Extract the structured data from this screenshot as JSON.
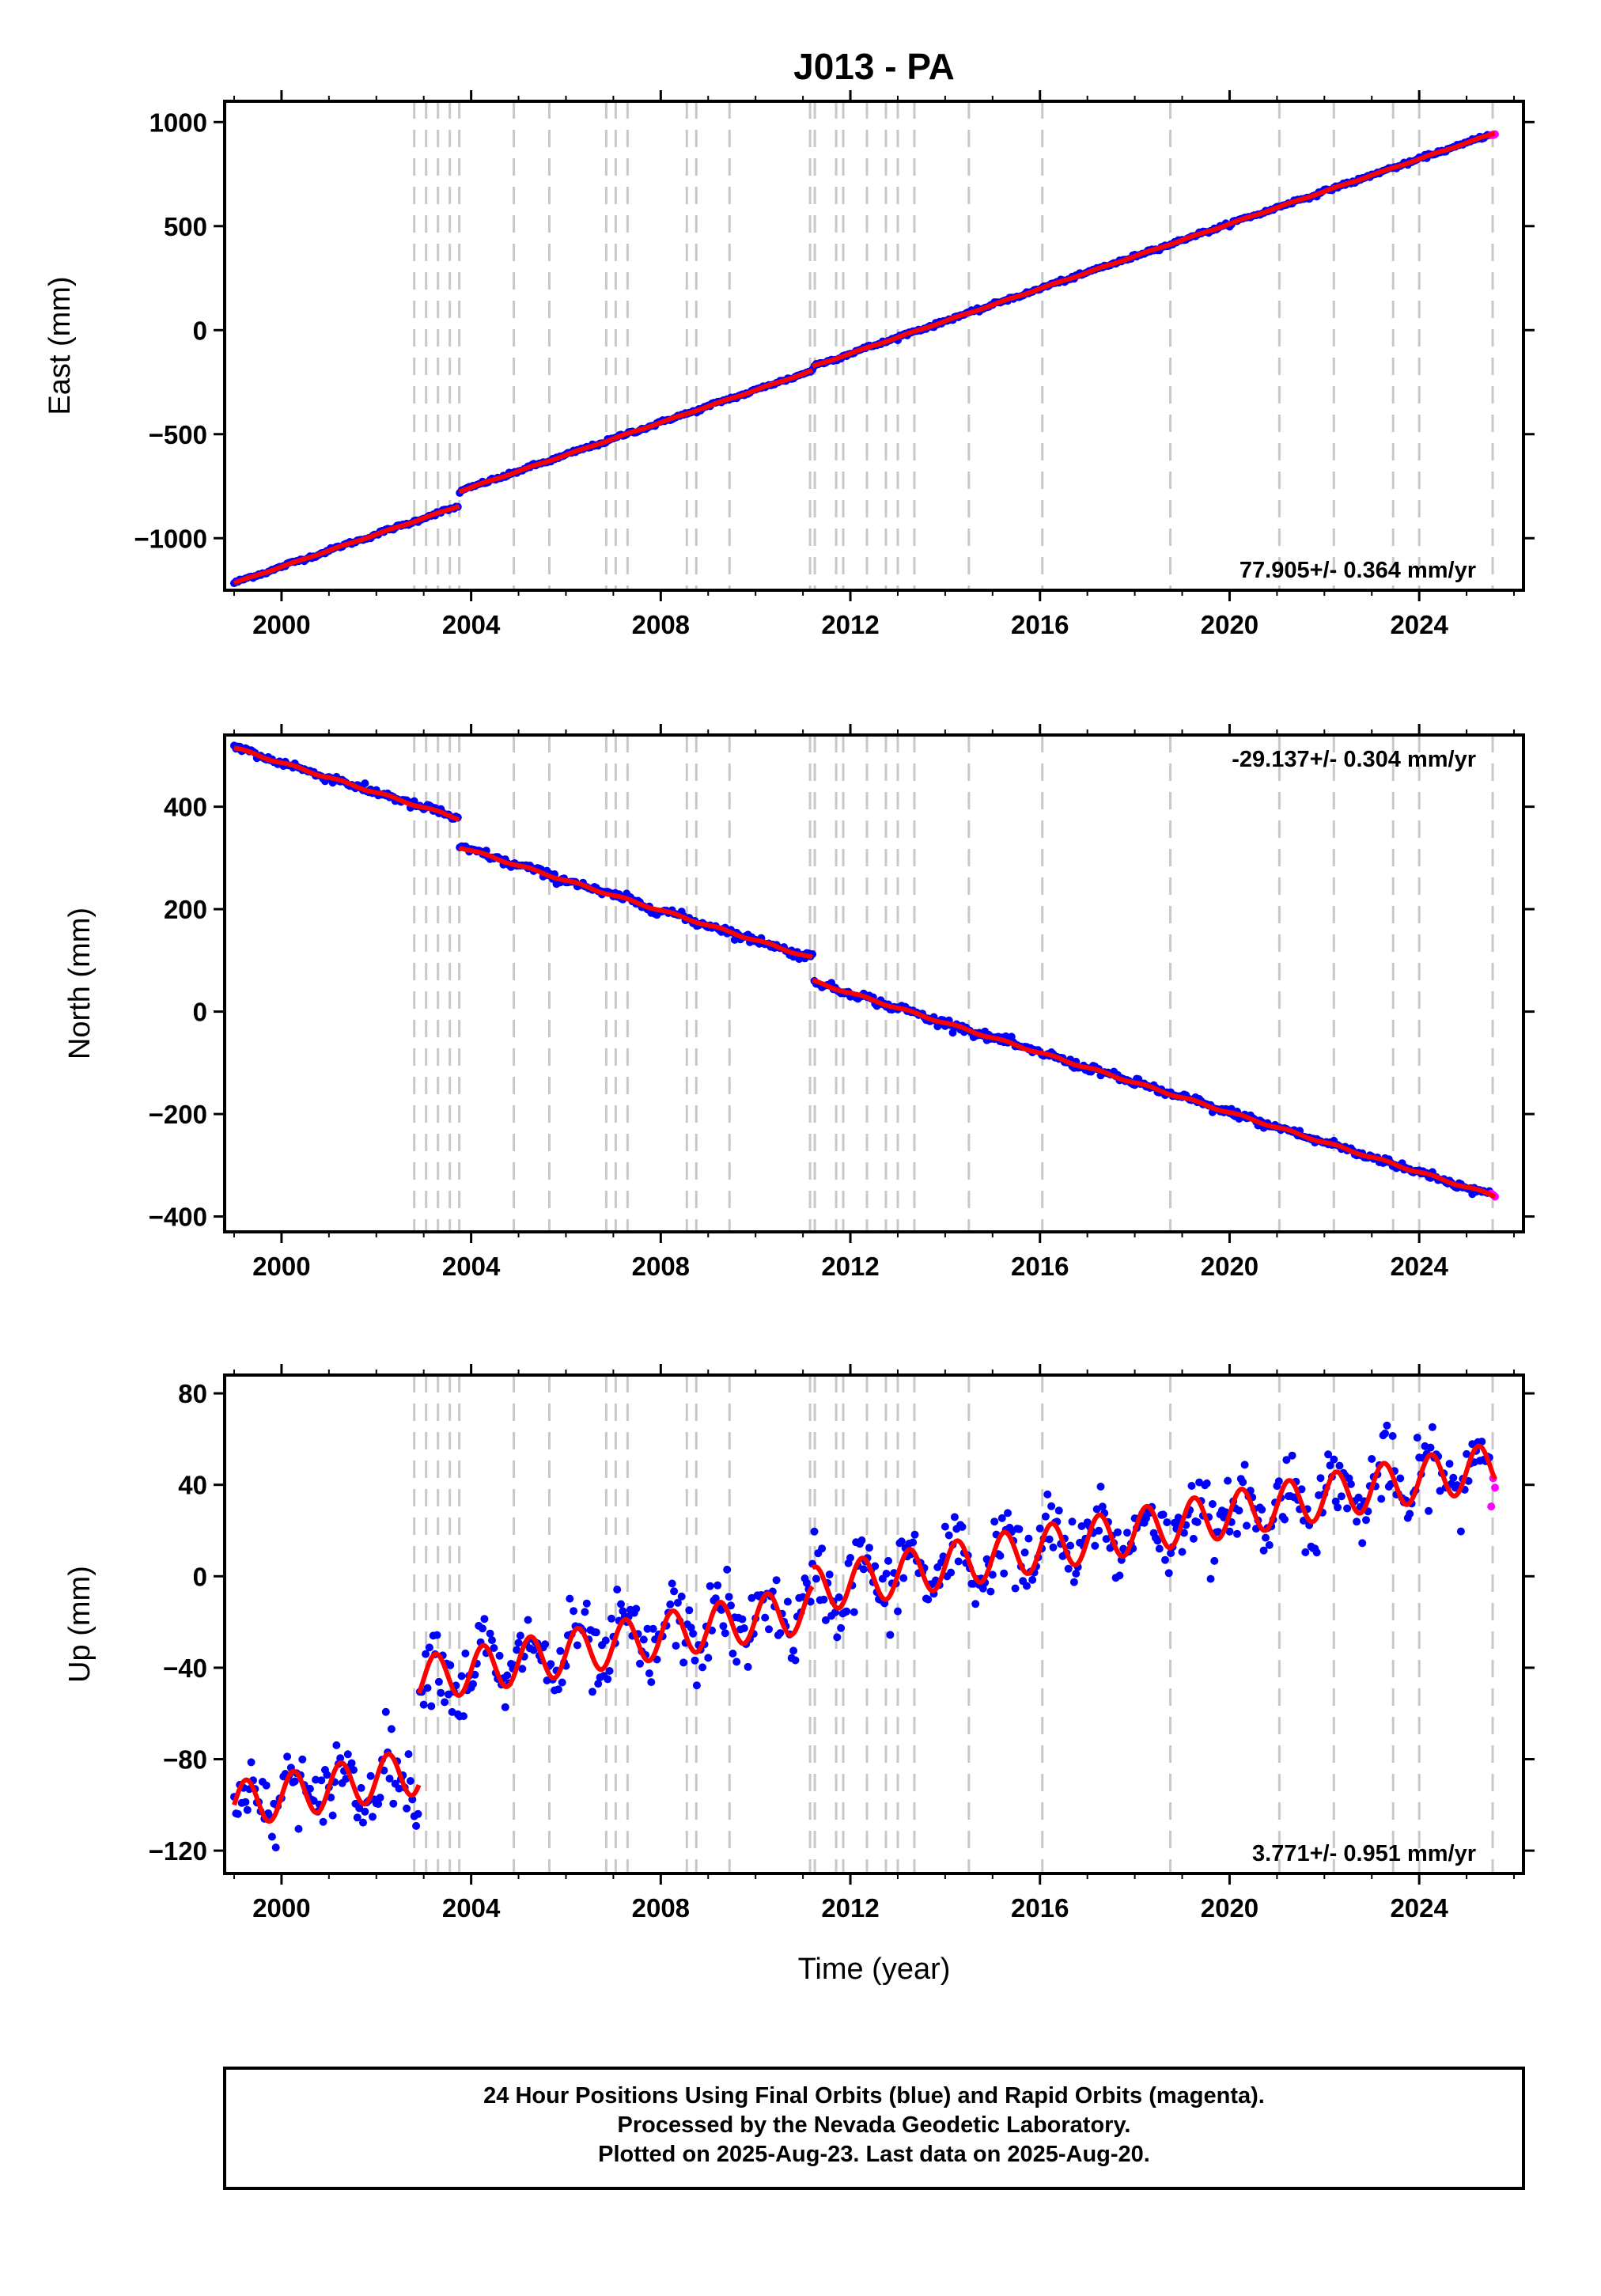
{
  "title": "J013 - PA",
  "x_axis_label": "Time (year)",
  "footer": {
    "line1": "24 Hour Positions Using Final Orbits (blue) and Rapid Orbits (magenta).",
    "line2": "Processed by the Nevada Geodetic Laboratory.",
    "line3": "Plotted on 2025-Aug-23. Last data on 2025-Aug-20."
  },
  "colors": {
    "final_orbits": "#0000ff",
    "rapid_orbits": "#ff00ff",
    "model_fit": "#ff0000",
    "event_lines": "#c8c8c8"
  },
  "chart_data": [
    {
      "type": "scatter",
      "name": "east",
      "ylabel": "East (mm)",
      "xlim": [
        1998.8,
        2026.2
      ],
      "ylim": [
        -1250,
        1100
      ],
      "xticks": [
        2000,
        2004,
        2008,
        2012,
        2016,
        2020,
        2024
      ],
      "yticks": [
        -1000,
        -500,
        0,
        500,
        1000
      ],
      "grid": false,
      "rate_text": "77.905+/- 0.364 mm/yr",
      "rate_position": "bottom-right",
      "trend": {
        "start_year": 1999.0,
        "start_value": -1215,
        "velocity": 77.905,
        "offsets": [
          {
            "year": 2003.75,
            "size": 70
          },
          {
            "year": 2011.2,
            "size": 20
          }
        ],
        "seasonal_amplitude": 2,
        "noise": 4,
        "end_year": 2025.6
      }
    },
    {
      "type": "scatter",
      "name": "north",
      "ylabel": "North (mm)",
      "xlim": [
        1998.8,
        2026.2
      ],
      "ylim": [
        -430,
        540
      ],
      "xticks": [
        2000,
        2004,
        2008,
        2012,
        2016,
        2020,
        2024
      ],
      "yticks": [
        -400,
        -200,
        0,
        200,
        400
      ],
      "grid": false,
      "rate_text": "-29.137+/- 0.304 mm/yr",
      "rate_position": "top-right",
      "trend": {
        "start_year": 1999.0,
        "start_value": 515,
        "velocity": -29.137,
        "offsets": [
          {
            "year": 2003.75,
            "size": -55
          },
          {
            "year": 2011.2,
            "size": -45
          }
        ],
        "seasonal_amplitude": 2,
        "noise": 4,
        "end_year": 2025.6
      }
    },
    {
      "type": "scatter",
      "name": "up",
      "ylabel": "Up (mm)",
      "xlim": [
        1998.8,
        2026.2
      ],
      "ylim": [
        -130,
        88
      ],
      "xticks": [
        2000,
        2004,
        2008,
        2012,
        2016,
        2020,
        2024
      ],
      "yticks": [
        -120,
        -80,
        -40,
        0,
        40,
        80
      ],
      "grid": false,
      "rate_text": "3.771+/- 0.951 mm/yr",
      "rate_position": "bottom-right",
      "trend": {
        "start_year": 1999.0,
        "start_value": -100,
        "velocity": 3.771,
        "offsets": [
          {
            "year": 2002.9,
            "size": 40
          },
          {
            "year": 2011.2,
            "size": 8
          }
        ],
        "seasonal_amplitude": 10,
        "noise": 8,
        "end_year": 2025.6
      }
    }
  ],
  "event_years": [
    2002.8,
    2003.05,
    2003.3,
    2003.55,
    2003.75,
    2004.9,
    2005.65,
    2006.85,
    2007.05,
    2007.3,
    2008.55,
    2008.75,
    2009.45,
    2011.15,
    2011.25,
    2011.7,
    2011.85,
    2012.35,
    2012.75,
    2013.0,
    2013.35,
    2014.5,
    2016.05,
    2018.75,
    2021.05,
    2022.2,
    2023.45,
    2024.0,
    2025.55
  ],
  "rapid_orbits_start_year": 2025.5
}
